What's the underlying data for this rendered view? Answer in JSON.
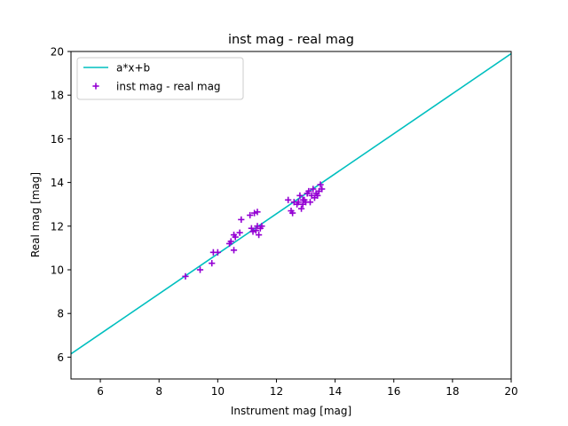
{
  "chart_data": {
    "type": "scatter",
    "title": "inst mag - real mag",
    "xlabel": "Instrument mag [mag]",
    "ylabel": "Real mag [mag]",
    "xlim": [
      5,
      20
    ],
    "ylim": [
      5,
      20
    ],
    "xticks": [
      6,
      8,
      10,
      12,
      14,
      16,
      18,
      20
    ],
    "yticks": [
      6,
      8,
      10,
      12,
      14,
      16,
      18,
      20
    ],
    "grid": false,
    "legend_position": "top-left",
    "series": [
      {
        "name": "a*x+b",
        "kind": "line",
        "color": "#00bfbf",
        "x": [
          5,
          20
        ],
        "y": [
          6.15,
          19.9
        ]
      },
      {
        "name": "inst mag - real mag",
        "kind": "scatter",
        "marker": "+",
        "color": "#9400d3",
        "x": [
          8.9,
          9.4,
          9.8,
          9.85,
          10.0,
          10.4,
          10.45,
          10.55,
          10.55,
          10.6,
          10.75,
          10.8,
          11.1,
          11.15,
          11.2,
          11.25,
          11.3,
          11.35,
          11.35,
          11.4,
          11.45,
          11.5,
          12.4,
          12.5,
          12.55,
          12.6,
          12.7,
          12.75,
          12.8,
          12.85,
          12.9,
          12.9,
          12.95,
          13.0,
          13.05,
          13.1,
          13.15,
          13.2,
          13.25,
          13.3,
          13.35,
          13.4,
          13.45,
          13.5,
          13.55
        ],
        "y": [
          9.7,
          10.0,
          10.3,
          10.8,
          10.8,
          11.2,
          11.3,
          11.6,
          10.9,
          11.5,
          11.7,
          12.3,
          12.5,
          11.9,
          11.75,
          12.6,
          11.8,
          12.0,
          12.65,
          11.6,
          11.9,
          12.0,
          13.2,
          12.7,
          12.6,
          13.1,
          13.0,
          13.1,
          13.4,
          12.8,
          13.2,
          13.0,
          13.2,
          13.1,
          13.5,
          13.6,
          13.1,
          13.4,
          13.7,
          13.3,
          13.5,
          13.4,
          13.6,
          13.9,
          13.7
        ]
      }
    ]
  }
}
